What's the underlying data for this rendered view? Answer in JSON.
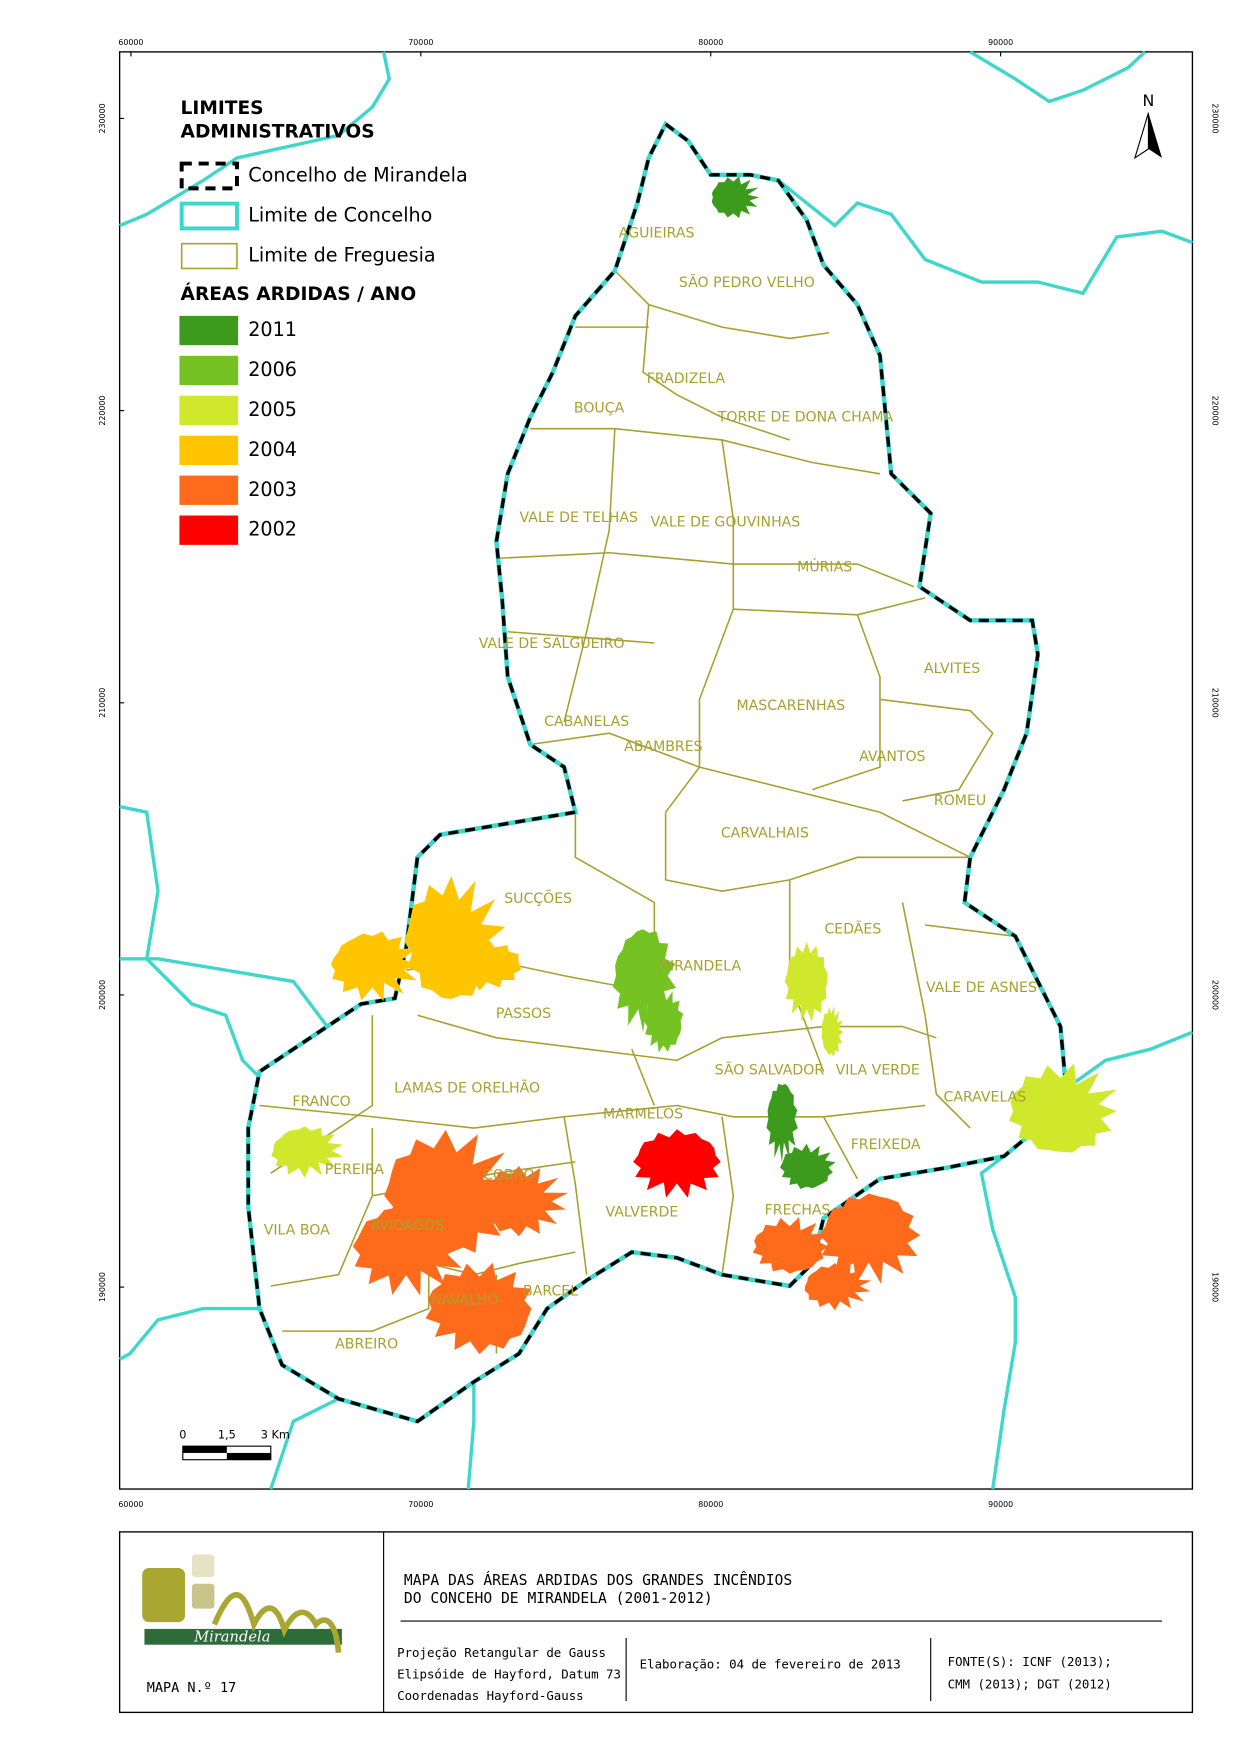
{
  "legend": {
    "limits_title": [
      "LIMITES",
      "ADMINISTRATIVOS"
    ],
    "boundaries": [
      {
        "label": "Concelho de Mirandela"
      },
      {
        "label": "Limite de Concelho"
      },
      {
        "label": "Limite de Freguesia"
      }
    ],
    "burned_title": "ÁREAS ARDIDAS / ANO",
    "years": [
      {
        "label": "2011",
        "color": "#3c9a1c"
      },
      {
        "label": "2006",
        "color": "#74c322"
      },
      {
        "label": "2005",
        "color": "#cfe82c"
      },
      {
        "label": "2004",
        "color": "#ffc600"
      },
      {
        "label": "2003",
        "color": "#ff6b1a"
      },
      {
        "label": "2002",
        "color": "#ff0000"
      }
    ]
  },
  "parishes": [
    "AGUIEIRAS",
    "SÃO PEDRO VELHO",
    "FRADIZELA",
    "BOUÇA",
    "TORRE DE DONA CHAMA",
    "VALE DE TELHAS",
    "VALE DE GOUVINHAS",
    "MÚRIAS",
    "VALE DE SALGUEIRO",
    "ALVITES",
    "MASCARENHAS",
    "CABANELAS",
    "ABAMBRES",
    "AVANTOS",
    "ROMEU",
    "CARVALHAIS",
    "SUCÇÕES",
    "CEDÃES",
    "MIRANDELA",
    "VALE DE ASNES",
    "PASSOS",
    "SÃO SALVADOR",
    "VILA VERDE",
    "LAMAS DE ORELHÃO",
    "CARAVELAS",
    "FRANCO",
    "MARMELOS",
    "FREIXEDA",
    "PEREIRA",
    "COBRO",
    "VALVERDE",
    "FRECHAS",
    "AVIDAGOS",
    "VILA BOA",
    "BARCEL",
    "NAVALHO",
    "ABREIRO"
  ],
  "grid": {
    "x_ticks": [
      60000,
      70000,
      80000,
      90000
    ],
    "y_ticks": [
      230000,
      220000,
      210000,
      200000,
      190000
    ]
  },
  "north": "N",
  "scale_bar": [
    "0",
    "1,5",
    "3 Km"
  ],
  "title_block": {
    "title": [
      "MAPA DAS ÁREAS ARDIDAS DOS GRANDES INCÊNDIOS",
      "DO CONCEHO DE MIRANDELA (2001-2012)"
    ],
    "projection": [
      "Projeção Retangular de Gauss",
      "Elipsóide de Hayford, Datum 73",
      "Coordenadas     Hayford-Gauss"
    ],
    "date": "Elaboração: 04 de fevereiro de 2013",
    "sources": [
      "FONTE(S): ICNF (2013);",
      "CMM (2013); DGT (2012)"
    ],
    "map_number": "MAPA N.º 17",
    "logo": "Mirandela"
  }
}
